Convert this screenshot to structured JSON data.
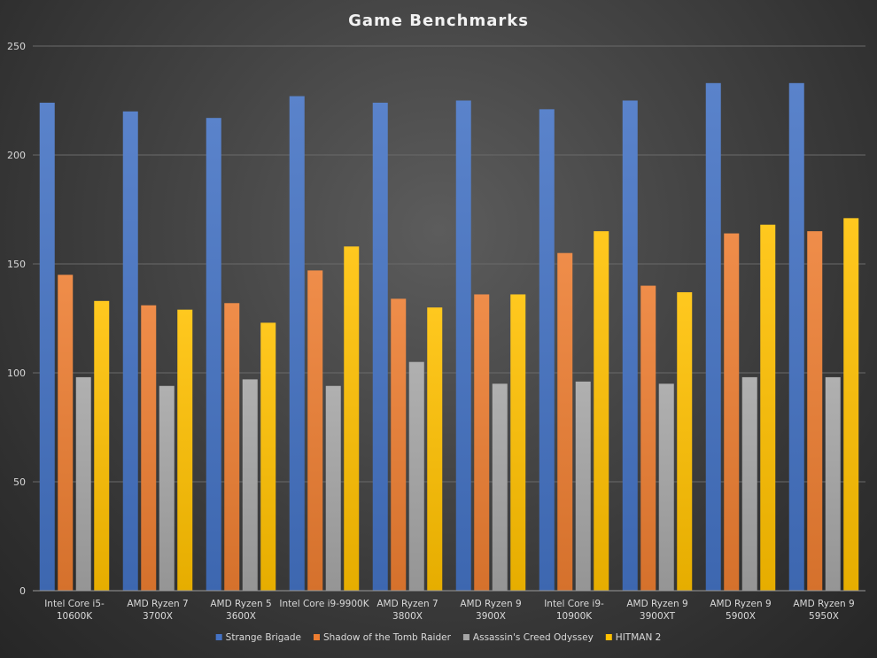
{
  "chart_data": {
    "type": "bar",
    "title": "Game Benchmarks",
    "xlabel": "",
    "ylabel": "",
    "ylim": [
      0,
      250
    ],
    "yticks": [
      0,
      50,
      100,
      150,
      200,
      250
    ],
    "grid": true,
    "legend_position": "bottom",
    "categories": [
      [
        "Intel Core i5-",
        "10600K"
      ],
      [
        "AMD Ryzen 7",
        "3700X"
      ],
      [
        "AMD Ryzen 5",
        "3600X"
      ],
      [
        "Intel Core i9-9900K"
      ],
      [
        "AMD Ryzen 7",
        "3800X"
      ],
      [
        "AMD Ryzen 9",
        "3900X"
      ],
      [
        "Intel Core i9-",
        "10900K"
      ],
      [
        "AMD Ryzen 9",
        "3900XT"
      ],
      [
        "AMD Ryzen 9",
        "5900X"
      ],
      [
        "AMD Ryzen 9",
        "5950X"
      ]
    ],
    "series": [
      {
        "name": "Strange Brigade",
        "color": "#4472c4",
        "values": [
          224,
          220,
          217,
          227,
          224,
          225,
          221,
          225,
          233,
          233
        ]
      },
      {
        "name": "Shadow of the Tomb Raider",
        "color": "#ed7d31",
        "values": [
          145,
          131,
          132,
          147,
          134,
          136,
          155,
          140,
          164,
          165
        ]
      },
      {
        "name": "Assassin's Creed Odyssey",
        "color": "#a5a5a5",
        "values": [
          98,
          94,
          97,
          94,
          105,
          95,
          96,
          95,
          98,
          98
        ]
      },
      {
        "name": "HITMAN 2",
        "color": "#ffc000",
        "values": [
          133,
          129,
          123,
          158,
          130,
          136,
          165,
          137,
          168,
          171
        ]
      }
    ]
  }
}
